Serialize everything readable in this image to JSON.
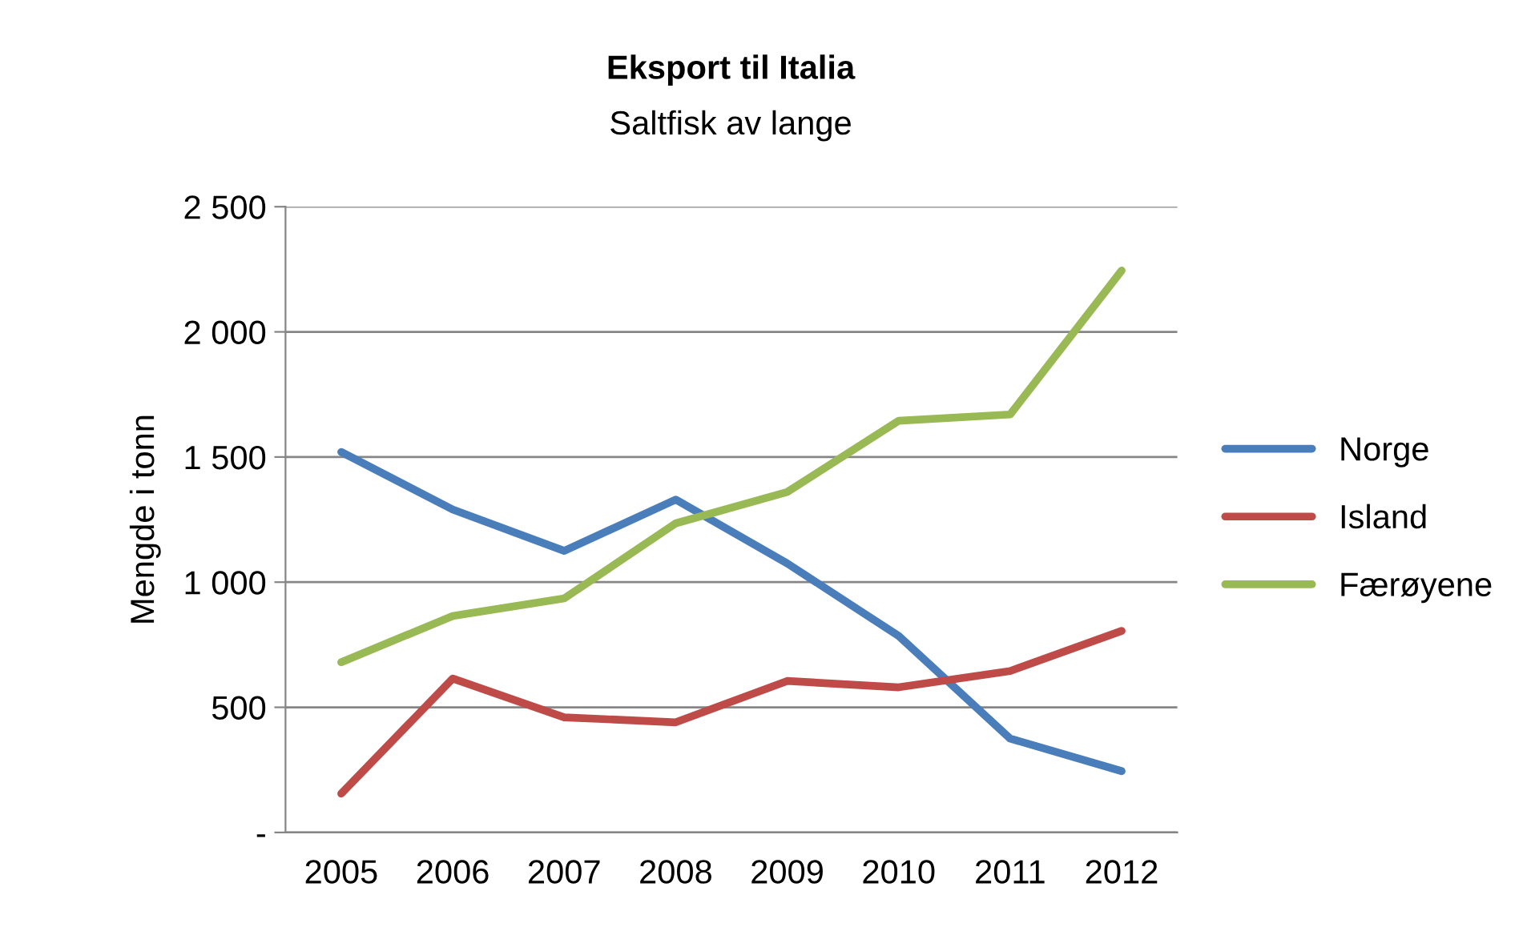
{
  "chart_data": {
    "type": "line",
    "title": "Eksport til Italia",
    "subtitle": "Saltfisk av lange",
    "ylabel": "Mengde i tonn",
    "categories": [
      "2005",
      "2006",
      "2007",
      "2008",
      "2009",
      "2010",
      "2011",
      "2012"
    ],
    "series": [
      {
        "name": "Norge",
        "color": "#4a7ebb",
        "values": [
          1520,
          1290,
          1125,
          1330,
          1075,
          785,
          375,
          245
        ]
      },
      {
        "name": "Island",
        "color": "#be4b48",
        "values": [
          155,
          615,
          460,
          440,
          605,
          580,
          645,
          805
        ]
      },
      {
        "name": "Færøyene",
        "color": "#98b954",
        "values": [
          680,
          865,
          935,
          1235,
          1360,
          1645,
          1670,
          2245
        ]
      }
    ],
    "ylim": [
      0,
      2500
    ],
    "yticks": [
      {
        "value": 0,
        "label": "-"
      },
      {
        "value": 500,
        "label": "500"
      },
      {
        "value": 1000,
        "label": "1 000"
      },
      {
        "value": 1500,
        "label": "1 500"
      },
      {
        "value": 2000,
        "label": "2 000"
      },
      {
        "value": 2500,
        "label": "2 500"
      }
    ],
    "grid": "y",
    "legend": "right",
    "marker": "none",
    "line_style": "solid"
  }
}
